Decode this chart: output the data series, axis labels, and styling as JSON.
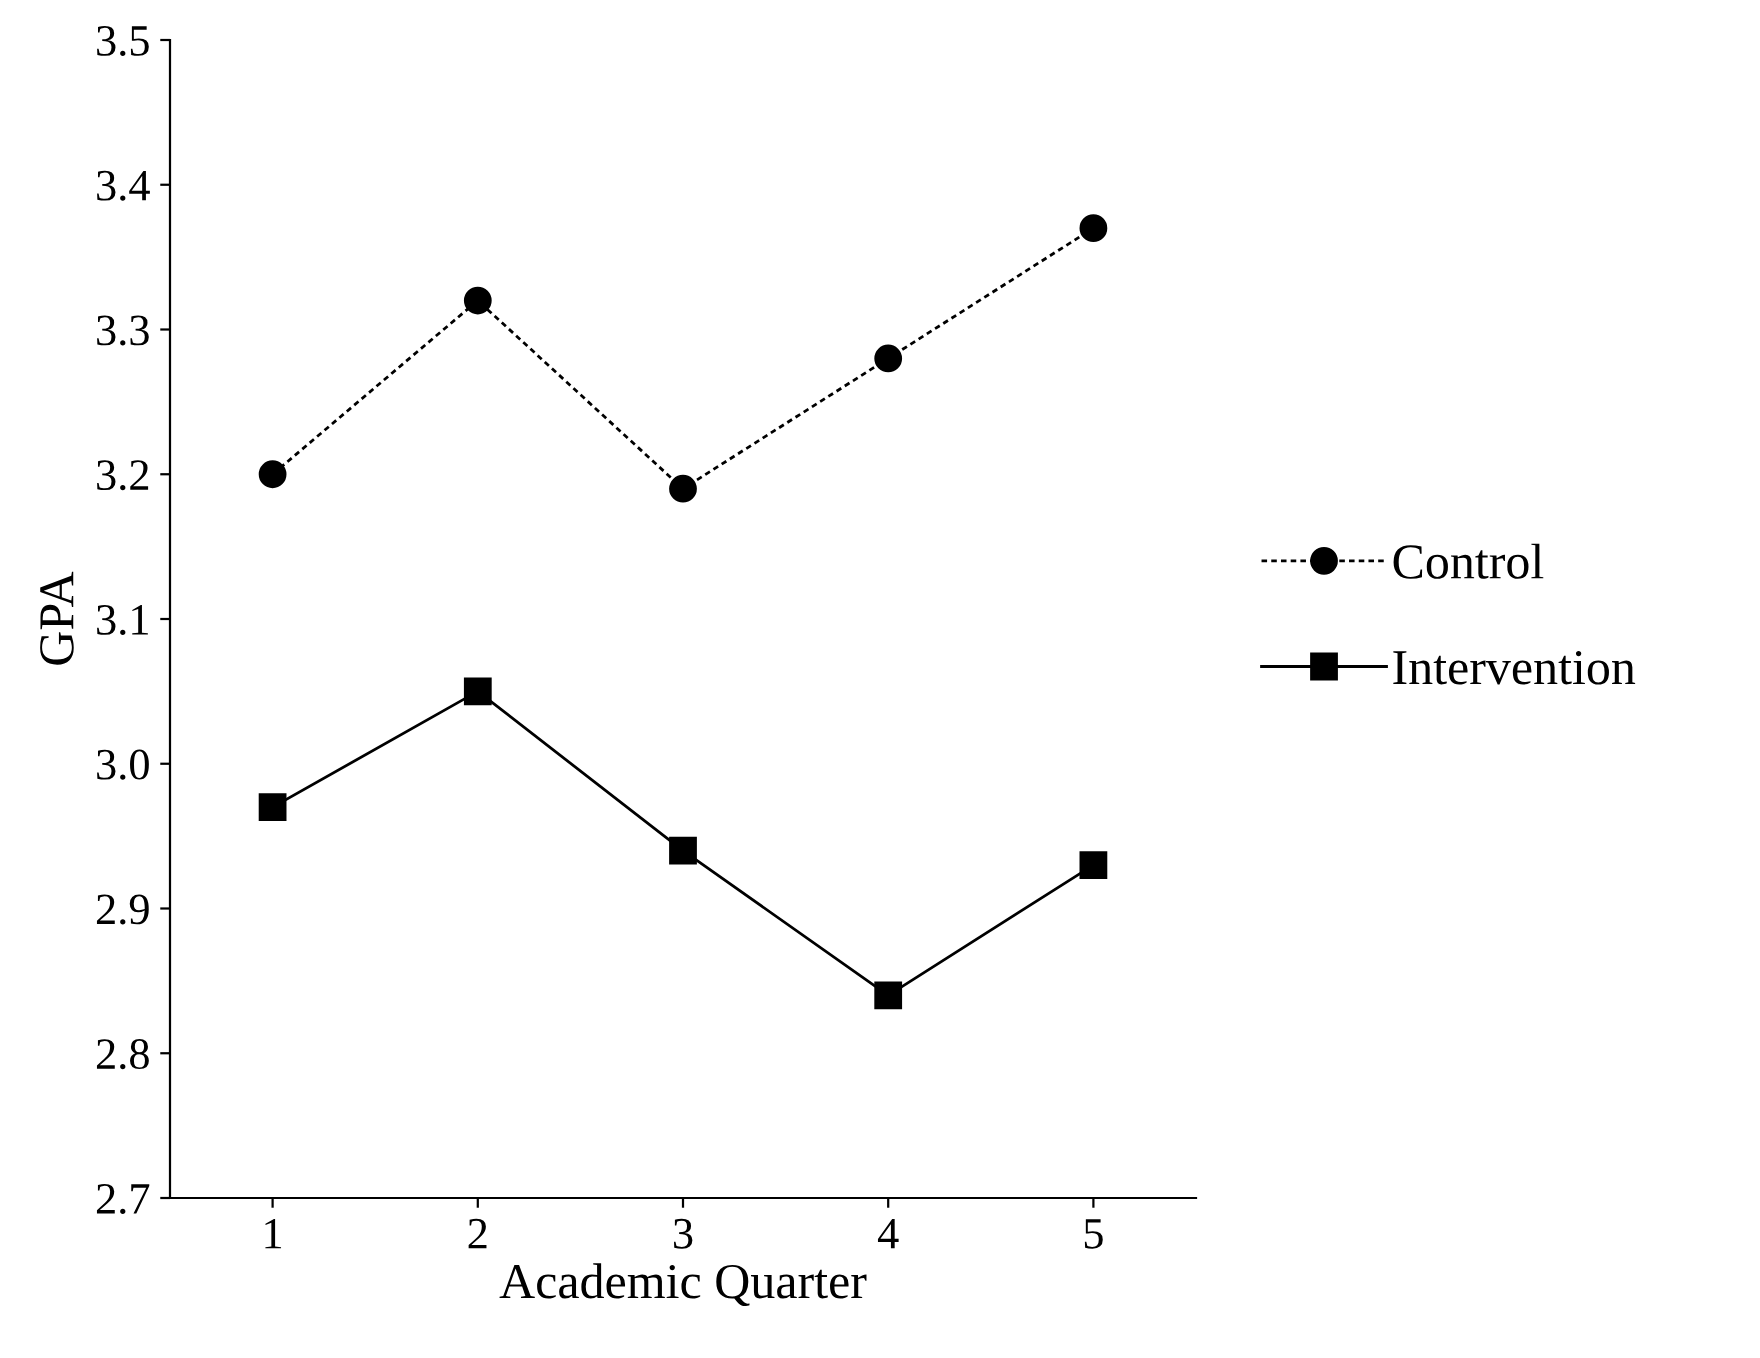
{
  "chart_data": {
    "type": "line",
    "xlabel": "Academic Quarter",
    "ylabel": "GPA",
    "categories": [
      "1",
      "2",
      "3",
      "4",
      "5"
    ],
    "series": [
      {
        "name": "Control",
        "color": "#000000",
        "marker": "circle",
        "line_style": "dashed",
        "values": [
          3.2,
          3.32,
          3.19,
          3.28,
          3.37
        ]
      },
      {
        "name": "Intervention",
        "color": "#000000",
        "marker": "square",
        "line_style": "solid",
        "values": [
          2.97,
          3.05,
          2.94,
          2.84,
          2.93
        ]
      }
    ],
    "ylim": [
      2.7,
      3.5
    ],
    "yticks": [
      {
        "value": 2.7,
        "label": "2.7"
      },
      {
        "value": 2.8,
        "label": "2.8"
      },
      {
        "value": 2.9,
        "label": "2.9"
      },
      {
        "value": 3.0,
        "label": "3.0"
      },
      {
        "value": 3.1,
        "label": "3.1"
      },
      {
        "value": 3.2,
        "label": "3.2"
      },
      {
        "value": 3.3,
        "label": "3.3"
      },
      {
        "value": 3.4,
        "label": "3.4"
      },
      {
        "value": 3.5,
        "label": "3.5"
      }
    ],
    "grid": false,
    "legend": "right"
  }
}
